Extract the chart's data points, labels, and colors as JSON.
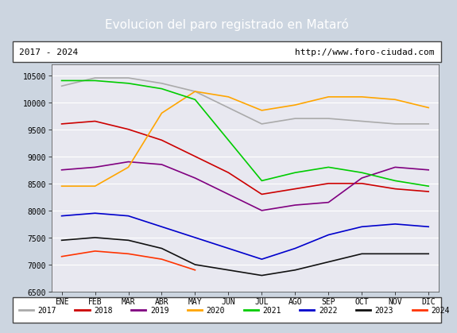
{
  "title": "Evolucion del paro registrado en Mataró",
  "title_bg": "#4a7fc1",
  "subtitle_left": "2017 - 2024",
  "subtitle_right": "http://www.foro-ciudad.com",
  "ylim": [
    6500,
    10700
  ],
  "months": [
    "ENE",
    "FEB",
    "MAR",
    "ABR",
    "MAY",
    "JUN",
    "JUL",
    "AGO",
    "SEP",
    "OCT",
    "NOV",
    "DIC"
  ],
  "series": {
    "2017": {
      "color": "#aaaaaa",
      "values": [
        10300,
        10450,
        10450,
        10350,
        10200,
        9900,
        9600,
        9700,
        9700,
        9650,
        9600,
        9600
      ]
    },
    "2018": {
      "color": "#cc0000",
      "values": [
        9600,
        9650,
        9500,
        9300,
        9000,
        8700,
        8300,
        8400,
        8500,
        8500,
        8400,
        8350
      ]
    },
    "2019": {
      "color": "#800080",
      "values": [
        8750,
        8800,
        8900,
        8850,
        8600,
        8300,
        8000,
        8100,
        8150,
        8600,
        8800,
        8750
      ]
    },
    "2020": {
      "color": "#ffa500",
      "values": [
        8450,
        8450,
        8800,
        9800,
        10200,
        10100,
        9850,
        9950,
        10100,
        10100,
        10050,
        9900
      ]
    },
    "2021": {
      "color": "#00cc00",
      "values": [
        10400,
        10400,
        10350,
        10250,
        10050,
        9300,
        8550,
        8700,
        8800,
        8700,
        8550,
        8450
      ]
    },
    "2022": {
      "color": "#0000cc",
      "values": [
        7900,
        7950,
        7900,
        7700,
        7500,
        7300,
        7100,
        7300,
        7550,
        7700,
        7750,
        7700
      ]
    },
    "2023": {
      "color": "#111111",
      "values": [
        7450,
        7500,
        7450,
        7300,
        7000,
        6900,
        6800,
        6900,
        7050,
        7200,
        7200,
        7200
      ]
    },
    "2024": {
      "color": "#ff3300",
      "values": [
        7150,
        7250,
        7200,
        7100,
        6900,
        null,
        null,
        null,
        null,
        null,
        null,
        null
      ]
    }
  },
  "legend_order": [
    "2017",
    "2018",
    "2019",
    "2020",
    "2021",
    "2022",
    "2023",
    "2024"
  ],
  "bg_plot": "#e8e8f0",
  "bg_fig": "#ccd5e0",
  "grid_color": "#ffffff",
  "tick_fontsize": 7,
  "title_fontsize": 11
}
